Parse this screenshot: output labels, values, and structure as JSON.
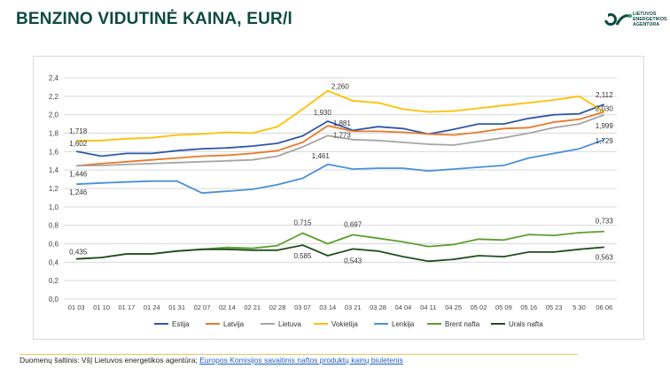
{
  "header": {
    "title": "BENZINO VIDUTINĖ KAINA, EUR/l",
    "logo_lines": [
      "LIETUVOS",
      "ENERGETIKOS",
      "AGENTŪRA"
    ]
  },
  "footer": {
    "source_label": "Duomenų šaltinis: VšĮ Lietuvos energetikos agentūra;",
    "source_link": "Europos Komisijos savaitinis naftos produktų kainų biuletenis"
  },
  "chart_data": {
    "type": "line",
    "categories": [
      "01 03",
      "01 10",
      "01 17",
      "01 24",
      "01 31",
      "02 07",
      "02 14",
      "02 21",
      "02 28",
      "03 07",
      "03 14",
      "03 21",
      "03 28",
      "04 04",
      "04 11",
      "04 25",
      "05 02",
      "05 09",
      "05 16",
      "05 23",
      "5 30",
      "06 06"
    ],
    "ylim": [
      0,
      2.4
    ],
    "yticks": [
      "0,0",
      "0,2",
      "0,4",
      "0,6",
      "0,8",
      "1,0",
      "1,2",
      "1,4",
      "1,6",
      "1,8",
      "2,0",
      "2,2",
      "2,4"
    ],
    "grid": true,
    "legend_position": "bottom",
    "series": [
      {
        "name": "Estija",
        "color": "#2f58a8",
        "values": [
          1.602,
          1.55,
          1.58,
          1.58,
          1.61,
          1.63,
          1.64,
          1.66,
          1.69,
          1.77,
          1.93,
          1.83,
          1.87,
          1.85,
          1.79,
          1.84,
          1.9,
          1.9,
          1.96,
          2.0,
          2.01,
          2.112
        ]
      },
      {
        "name": "Latvija",
        "color": "#e8782a",
        "values": [
          1.446,
          1.47,
          1.49,
          1.51,
          1.53,
          1.55,
          1.56,
          1.58,
          1.61,
          1.7,
          1.881,
          1.82,
          1.82,
          1.81,
          1.79,
          1.78,
          1.81,
          1.85,
          1.86,
          1.92,
          1.95,
          2.03
        ]
      },
      {
        "name": "Lietuva",
        "color": "#a5a5a5",
        "values": [
          1.446,
          1.45,
          1.46,
          1.47,
          1.48,
          1.49,
          1.5,
          1.51,
          1.55,
          1.65,
          1.773,
          1.73,
          1.72,
          1.7,
          1.68,
          1.67,
          1.71,
          1.75,
          1.8,
          1.86,
          1.9,
          1.999
        ]
      },
      {
        "name": "Vokietija",
        "color": "#ffc000",
        "values": [
          1.718,
          1.72,
          1.74,
          1.75,
          1.78,
          1.79,
          1.81,
          1.8,
          1.87,
          2.06,
          2.26,
          2.15,
          2.13,
          2.06,
          2.03,
          2.04,
          2.07,
          2.1,
          2.13,
          2.16,
          2.2,
          2.03
        ]
      },
      {
        "name": "Lenkija",
        "color": "#4a90d9",
        "values": [
          1.246,
          1.26,
          1.27,
          1.28,
          1.28,
          1.15,
          1.17,
          1.19,
          1.24,
          1.31,
          1.461,
          1.41,
          1.42,
          1.42,
          1.39,
          1.41,
          1.43,
          1.45,
          1.53,
          1.58,
          1.63,
          1.729
        ]
      },
      {
        "name": "Brent nafta",
        "color": "#5a9f2f",
        "values": [
          0.435,
          0.45,
          0.49,
          0.49,
          0.52,
          0.54,
          0.56,
          0.55,
          0.58,
          0.715,
          0.6,
          0.697,
          0.66,
          0.62,
          0.57,
          0.59,
          0.65,
          0.64,
          0.7,
          0.69,
          0.72,
          0.733
        ]
      },
      {
        "name": "Urals nafta",
        "color": "#1f4e1f",
        "values": [
          0.435,
          0.45,
          0.49,
          0.49,
          0.52,
          0.54,
          0.54,
          0.53,
          0.53,
          0.585,
          0.47,
          0.543,
          0.52,
          0.46,
          0.41,
          0.43,
          0.47,
          0.46,
          0.51,
          0.51,
          0.54,
          0.563
        ]
      }
    ],
    "annotations": [
      {
        "series": 0,
        "index": 0,
        "text": "1,602"
      },
      {
        "series": 1,
        "index": 0,
        "text": "1,446"
      },
      {
        "series": 3,
        "index": 0,
        "text": "1,718"
      },
      {
        "series": 4,
        "index": 0,
        "text": "1,246"
      },
      {
        "series": 5,
        "index": 0,
        "text": "0,435"
      },
      {
        "series": 0,
        "index": 10,
        "text": "1,930"
      },
      {
        "series": 1,
        "index": 10,
        "text": "1,881"
      },
      {
        "series": 2,
        "index": 10,
        "text": "1,773"
      },
      {
        "series": 3,
        "index": 10,
        "text": "2,260"
      },
      {
        "series": 4,
        "index": 10,
        "text": "1,461"
      },
      {
        "series": 5,
        "index": 9,
        "text": "0,715"
      },
      {
        "series": 6,
        "index": 9,
        "text": "0,585"
      },
      {
        "series": 5,
        "index": 11,
        "text": "0,697"
      },
      {
        "series": 6,
        "index": 11,
        "text": "0,543"
      },
      {
        "series": 0,
        "index": 21,
        "text": "2,112"
      },
      {
        "series": 1,
        "index": 21,
        "text": "2,030"
      },
      {
        "series": 2,
        "index": 21,
        "text": "1,999"
      },
      {
        "series": 4,
        "index": 21,
        "text": "1,729"
      },
      {
        "series": 5,
        "index": 21,
        "text": "0,733"
      },
      {
        "series": 6,
        "index": 21,
        "text": "0,563"
      }
    ]
  }
}
